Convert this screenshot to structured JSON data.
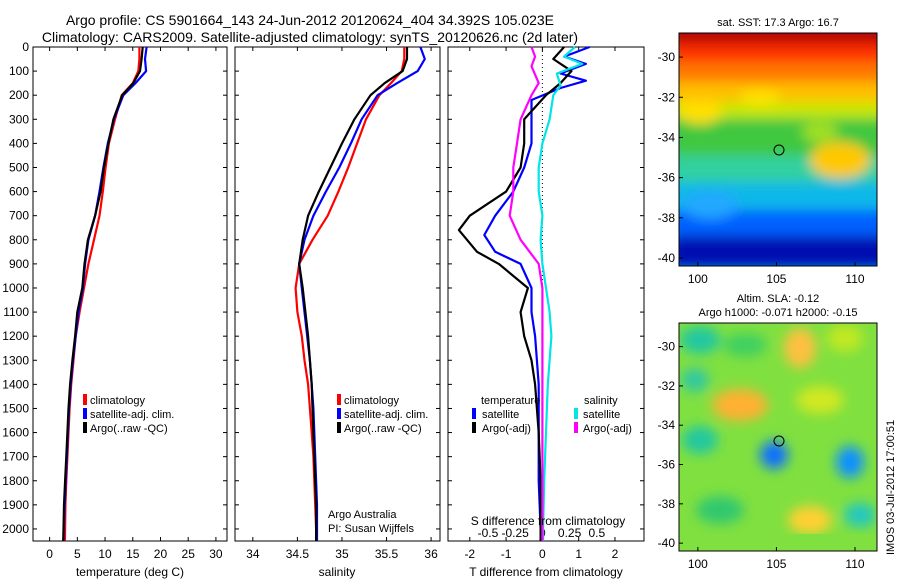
{
  "title_line1": "Argo profile: CS 5901664_143 24-Jun-2012 20120624_404 34.392S 105.023E",
  "title_line2": "Climatology: CARS2009. Satellite-adjusted climatology: synTS_20120626.nc (2d later)",
  "credit": "Argo Australia",
  "pi": "PI: Susan Wijffels",
  "watermark": "IMOS 03-Jul-2012 17:00:51",
  "colors": {
    "climatology": "#ff0000",
    "satellite": "#0000ff",
    "argo": "#000000",
    "sal_sat": "#00e5e5",
    "sal_argo": "#ff00ff"
  },
  "chart_data": [
    {
      "type": "line",
      "xlabel": "temperature (deg C)",
      "xlim": [
        -3,
        32
      ],
      "xticks": [
        "0",
        "5",
        "10",
        "15",
        "20",
        "25",
        "30"
      ],
      "ylim": [
        0,
        2050
      ],
      "yticks": [
        "0",
        "100",
        "200",
        "300",
        "400",
        "500",
        "600",
        "700",
        "800",
        "900",
        "1000",
        "1100",
        "1200",
        "1300",
        "1400",
        "1500",
        "1600",
        "1700",
        "1800",
        "1900",
        "2000"
      ],
      "legend": [
        "climatology",
        "satellite-adj. clim.",
        "Argo(..raw -QC)"
      ],
      "series": [
        {
          "name": "climatology",
          "color": "#ff0000",
          "points": [
            [
              16.2,
              0
            ],
            [
              16.2,
              50
            ],
            [
              16.0,
              100
            ],
            [
              15.0,
              150
            ],
            [
              13.0,
              200
            ],
            [
              11.8,
              300
            ],
            [
              10.7,
              400
            ],
            [
              10.1,
              500
            ],
            [
              9.6,
              600
            ],
            [
              9.0,
              700
            ],
            [
              8.0,
              800
            ],
            [
              7.0,
              900
            ],
            [
              6.2,
              1000
            ],
            [
              5.4,
              1100
            ],
            [
              4.7,
              1200
            ],
            [
              4.3,
              1300
            ],
            [
              3.9,
              1400
            ],
            [
              3.6,
              1500
            ],
            [
              3.4,
              1600
            ],
            [
              3.2,
              1700
            ],
            [
              3.0,
              1800
            ],
            [
              2.85,
              1900
            ],
            [
              2.8,
              2000
            ],
            [
              2.75,
              2050
            ]
          ]
        },
        {
          "name": "satellite-adj. clim.",
          "color": "#0000ff",
          "points": [
            [
              17.5,
              0
            ],
            [
              17.2,
              50
            ],
            [
              17.4,
              100
            ],
            [
              15.5,
              150
            ],
            [
              13.3,
              200
            ],
            [
              11.6,
              300
            ],
            [
              10.5,
              400
            ],
            [
              9.7,
              500
            ],
            [
              9.0,
              600
            ],
            [
              8.2,
              700
            ],
            [
              7.0,
              800
            ],
            [
              6.4,
              900
            ],
            [
              6.0,
              1000
            ],
            [
              5.2,
              1100
            ],
            [
              4.7,
              1200
            ],
            [
              4.2,
              1300
            ],
            [
              3.8,
              1400
            ],
            [
              3.5,
              1500
            ],
            [
              3.3,
              1600
            ],
            [
              3.1,
              1700
            ],
            [
              2.9,
              1800
            ],
            [
              2.7,
              1900
            ],
            [
              2.55,
              2000
            ],
            [
              2.5,
              2050
            ]
          ]
        },
        {
          "name": "Argo(..raw -QC)",
          "color": "#000000",
          "points": [
            [
              16.8,
              0
            ],
            [
              16.6,
              50
            ],
            [
              16.3,
              100
            ],
            [
              15.1,
              150
            ],
            [
              13.1,
              200
            ],
            [
              11.5,
              300
            ],
            [
              10.6,
              400
            ],
            [
              9.8,
              500
            ],
            [
              9.2,
              600
            ],
            [
              8.2,
              700
            ],
            [
              6.9,
              800
            ],
            [
              6.3,
              900
            ],
            [
              5.9,
              1000
            ],
            [
              5.0,
              1100
            ],
            [
              4.6,
              1200
            ],
            [
              4.1,
              1300
            ],
            [
              3.7,
              1400
            ],
            [
              3.4,
              1500
            ],
            [
              3.2,
              1600
            ],
            [
              3.0,
              1700
            ],
            [
              2.8,
              1800
            ],
            [
              2.6,
              1900
            ],
            [
              2.5,
              2000
            ],
            [
              2.45,
              2050
            ]
          ]
        }
      ]
    },
    {
      "type": "line",
      "xlabel": "salinity",
      "xlim": [
        33.8,
        36.1
      ],
      "xticks": [
        "34",
        "34.5",
        "35",
        "35.5",
        "36"
      ],
      "ylim": [
        0,
        2050
      ],
      "legend": [
        "climatology",
        "satellite-adj. clim.",
        "Argo(..raw -QC)"
      ],
      "series": [
        {
          "name": "climatology",
          "color": "#ff0000",
          "points": [
            [
              35.7,
              0
            ],
            [
              35.7,
              50
            ],
            [
              35.67,
              100
            ],
            [
              35.55,
              150
            ],
            [
              35.42,
              200
            ],
            [
              35.27,
              300
            ],
            [
              35.17,
              400
            ],
            [
              35.07,
              500
            ],
            [
              34.96,
              600
            ],
            [
              34.84,
              700
            ],
            [
              34.67,
              800
            ],
            [
              34.52,
              900
            ],
            [
              34.48,
              1000
            ],
            [
              34.5,
              1100
            ],
            [
              34.55,
              1200
            ],
            [
              34.58,
              1300
            ],
            [
              34.62,
              1400
            ],
            [
              34.64,
              1500
            ],
            [
              34.66,
              1600
            ],
            [
              34.68,
              1700
            ],
            [
              34.69,
              1800
            ],
            [
              34.7,
              1900
            ],
            [
              34.71,
              2000
            ],
            [
              34.71,
              2050
            ]
          ]
        },
        {
          "name": "satellite-adj. clim.",
          "color": "#0000ff",
          "points": [
            [
              35.88,
              0
            ],
            [
              35.93,
              50
            ],
            [
              35.85,
              100
            ],
            [
              35.62,
              150
            ],
            [
              35.4,
              200
            ],
            [
              35.22,
              300
            ],
            [
              35.1,
              400
            ],
            [
              34.97,
              500
            ],
            [
              34.82,
              600
            ],
            [
              34.68,
              700
            ],
            [
              34.58,
              800
            ],
            [
              34.52,
              900
            ],
            [
              34.55,
              1000
            ],
            [
              34.58,
              1100
            ],
            [
              34.61,
              1200
            ],
            [
              34.64,
              1300
            ],
            [
              34.66,
              1400
            ],
            [
              34.68,
              1500
            ],
            [
              34.69,
              1600
            ],
            [
              34.7,
              1700
            ],
            [
              34.71,
              1800
            ],
            [
              34.72,
              1900
            ],
            [
              34.72,
              2000
            ],
            [
              34.72,
              2050
            ]
          ]
        },
        {
          "name": "Argo(..raw -QC)",
          "color": "#000000",
          "points": [
            [
              35.73,
              0
            ],
            [
              35.73,
              50
            ],
            [
              35.68,
              100
            ],
            [
              35.48,
              150
            ],
            [
              35.32,
              200
            ],
            [
              35.14,
              300
            ],
            [
              35.0,
              400
            ],
            [
              34.87,
              500
            ],
            [
              34.74,
              600
            ],
            [
              34.62,
              700
            ],
            [
              34.56,
              800
            ],
            [
              34.52,
              900
            ],
            [
              34.56,
              1000
            ],
            [
              34.59,
              1100
            ],
            [
              34.62,
              1200
            ],
            [
              34.64,
              1300
            ],
            [
              34.66,
              1400
            ],
            [
              34.67,
              1500
            ],
            [
              34.68,
              1600
            ],
            [
              34.69,
              1700
            ],
            [
              34.7,
              1800
            ],
            [
              34.71,
              1900
            ],
            [
              34.71,
              2000
            ],
            [
              34.71,
              2050
            ]
          ]
        }
      ]
    },
    {
      "type": "line",
      "xlabel": "T difference from climatology",
      "xlabel_top": "S difference from climatology",
      "xlim": [
        -2.6,
        2.8
      ],
      "xticks": [
        "-2",
        "-1",
        "0",
        "1",
        "2"
      ],
      "xticks_top": [
        "-0.5",
        "-0.25",
        "0",
        "0.25",
        "0.5"
      ],
      "ylim": [
        0,
        2050
      ],
      "legend_temperature": "temperature",
      "legend_salinity": "salinity",
      "legend_items": [
        "satellite",
        "Argo(-adj)",
        "satellite",
        "Argo(-adj)"
      ],
      "series": [
        {
          "name": "temperature satellite",
          "color": "#0000ff",
          "points": [
            [
              1.3,
              0
            ],
            [
              0.6,
              40
            ],
            [
              1.2,
              70
            ],
            [
              0.5,
              110
            ],
            [
              1.2,
              140
            ],
            [
              0.5,
              170
            ],
            [
              -0.3,
              220
            ],
            [
              -0.3,
              300
            ],
            [
              -0.3,
              400
            ],
            [
              -0.5,
              500
            ],
            [
              -0.8,
              600
            ],
            [
              -1.3,
              700
            ],
            [
              -1.6,
              780
            ],
            [
              -1.3,
              850
            ],
            [
              -0.6,
              900
            ],
            [
              -0.3,
              1000
            ],
            [
              -0.3,
              1100
            ],
            [
              -0.2,
              1200
            ],
            [
              -0.1,
              1400
            ],
            [
              -0.1,
              1600
            ],
            [
              -0.1,
              1800
            ],
            [
              -0.05,
              2000
            ],
            [
              -0.05,
              2050
            ]
          ]
        },
        {
          "name": "temperature Argo(-adj)",
          "color": "#000000",
          "points": [
            [
              0.6,
              0
            ],
            [
              0.3,
              50
            ],
            [
              0.8,
              100
            ],
            [
              0.5,
              150
            ],
            [
              0.1,
              200
            ],
            [
              -0.5,
              300
            ],
            [
              -0.5,
              400
            ],
            [
              -0.6,
              500
            ],
            [
              -1.0,
              600
            ],
            [
              -2.0,
              700
            ],
            [
              -2.3,
              760
            ],
            [
              -1.8,
              850
            ],
            [
              -1.2,
              900
            ],
            [
              -0.4,
              1000
            ],
            [
              -0.6,
              1100
            ],
            [
              -0.5,
              1200
            ],
            [
              -0.3,
              1300
            ],
            [
              -0.2,
              1400
            ],
            [
              -0.1,
              1600
            ],
            [
              -0.05,
              1800
            ],
            [
              -0.05,
              2000
            ],
            [
              -0.05,
              2050
            ]
          ]
        },
        {
          "name": "salinity satellite",
          "color": "#00e5e5",
          "points": [
            [
              0.9,
              0
            ],
            [
              0.6,
              40
            ],
            [
              1.1,
              70
            ],
            [
              0.4,
              110
            ],
            [
              0.5,
              160
            ],
            [
              0.3,
              200
            ],
            [
              0.2,
              300
            ],
            [
              0.0,
              400
            ],
            [
              -0.1,
              500
            ],
            [
              -0.1,
              600
            ],
            [
              0.0,
              700
            ],
            [
              -0.05,
              800
            ],
            [
              0.0,
              900
            ],
            [
              0.1,
              1000
            ],
            [
              0.2,
              1100
            ],
            [
              0.25,
              1200
            ],
            [
              0.2,
              1300
            ],
            [
              0.15,
              1400
            ],
            [
              0.1,
              1600
            ],
            [
              0.05,
              1800
            ],
            [
              0.02,
              2000
            ],
            [
              0.02,
              2050
            ]
          ]
        },
        {
          "name": "salinity Argo(-adj)",
          "color": "#ff00ff",
          "points": [
            [
              -0.3,
              0
            ],
            [
              -0.2,
              40
            ],
            [
              -0.3,
              80
            ],
            [
              -0.1,
              150
            ],
            [
              -0.3,
              200
            ],
            [
              -0.6,
              300
            ],
            [
              -0.7,
              400
            ],
            [
              -0.8,
              500
            ],
            [
              -0.8,
              600
            ],
            [
              -0.9,
              700
            ],
            [
              -0.6,
              800
            ],
            [
              -0.1,
              900
            ],
            [
              0.0,
              1000
            ],
            [
              0.0,
              1200
            ],
            [
              0.0,
              1400
            ],
            [
              0.0,
              1600
            ],
            [
              0.0,
              1800
            ],
            [
              0.0,
              2000
            ],
            [
              0.0,
              2050
            ]
          ]
        }
      ]
    },
    {
      "type": "heatmap",
      "title": "sat. SST: 17.3  Argo: 16.7",
      "xticks": [
        "100",
        "105",
        "110"
      ],
      "yticks": [
        "-30",
        "-32",
        "-34",
        "-36",
        "-38",
        "-40"
      ],
      "marker": {
        "lon": 105.0,
        "lat": -34.39
      }
    },
    {
      "type": "heatmap",
      "title_line1": "Altim. SLA: -0.12",
      "title_line2": "Argo h1000: -0.071  h2000: -0.15",
      "xticks": [
        "100",
        "105",
        "110"
      ],
      "yticks": [
        "-30",
        "-32",
        "-34",
        "-36",
        "-38",
        "-40"
      ],
      "marker": {
        "lon": 105.0,
        "lat": -34.39
      }
    }
  ]
}
